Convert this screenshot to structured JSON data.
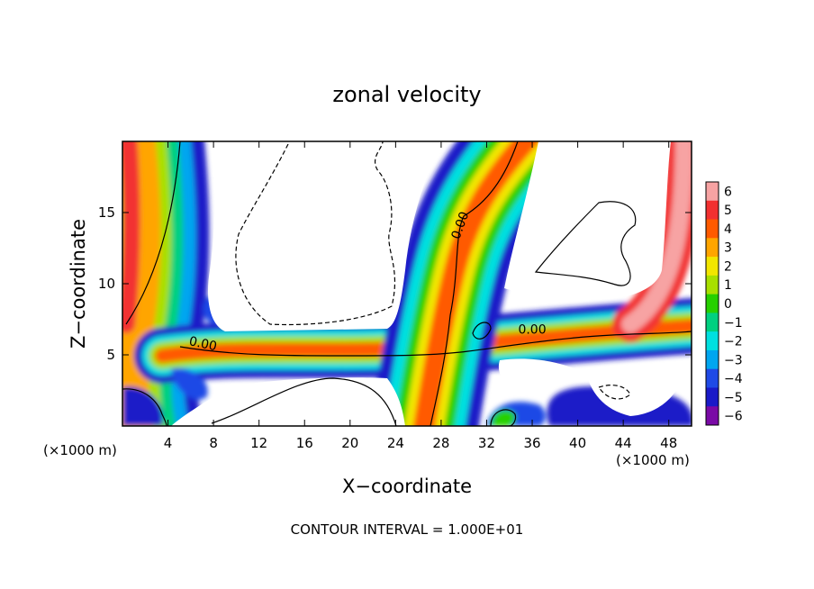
{
  "chart_data": {
    "type": "heatmap",
    "title": "zonal velocity",
    "xlabel": "X−coordinate",
    "ylabel": "Z−coordinate",
    "x_multiplier_left": "(×1000 m)",
    "x_multiplier_right": "(×1000 m)",
    "footer": "CONTOUR INTERVAL = 1.000E+01",
    "xlim": [
      0,
      50
    ],
    "ylim": [
      0,
      20
    ],
    "x_ticks": [
      4,
      8,
      12,
      16,
      20,
      24,
      28,
      32,
      36,
      40,
      44,
      48
    ],
    "x_tick_labels": [
      "4",
      "8",
      "12",
      "16",
      "20",
      "24",
      "28",
      "32",
      "36",
      "40",
      "44",
      "48"
    ],
    "y_ticks": [
      5,
      10,
      15
    ],
    "y_tick_labels": [
      "5",
      "10",
      "15"
    ],
    "contour_labels": [
      {
        "text": "0.00",
        "x": 7.0,
        "y": 5.5
      },
      {
        "text": "0.00",
        "x": 30.0,
        "y": 14.0
      },
      {
        "text": "0.00",
        "x": 36.0,
        "y": 6.5
      }
    ],
    "colorbar": {
      "levels": [
        6,
        5,
        4,
        3,
        2,
        1,
        0,
        -1,
        -2,
        -3,
        -4,
        -5,
        -6
      ],
      "labels": [
        "6",
        "5",
        "4",
        "3",
        "2",
        "1",
        "0",
        "−1",
        "−2",
        "−3",
        "−4",
        "−5",
        "−6"
      ],
      "colors": [
        "#f7a3a3",
        "#f23030",
        "#ff5a00",
        "#ffa500",
        "#f2e600",
        "#a8e000",
        "#26d000",
        "#00d080",
        "#00e0e0",
        "#00a6f0",
        "#1f4ae6",
        "#1a1ac8",
        "#7a0aa6"
      ]
    }
  }
}
